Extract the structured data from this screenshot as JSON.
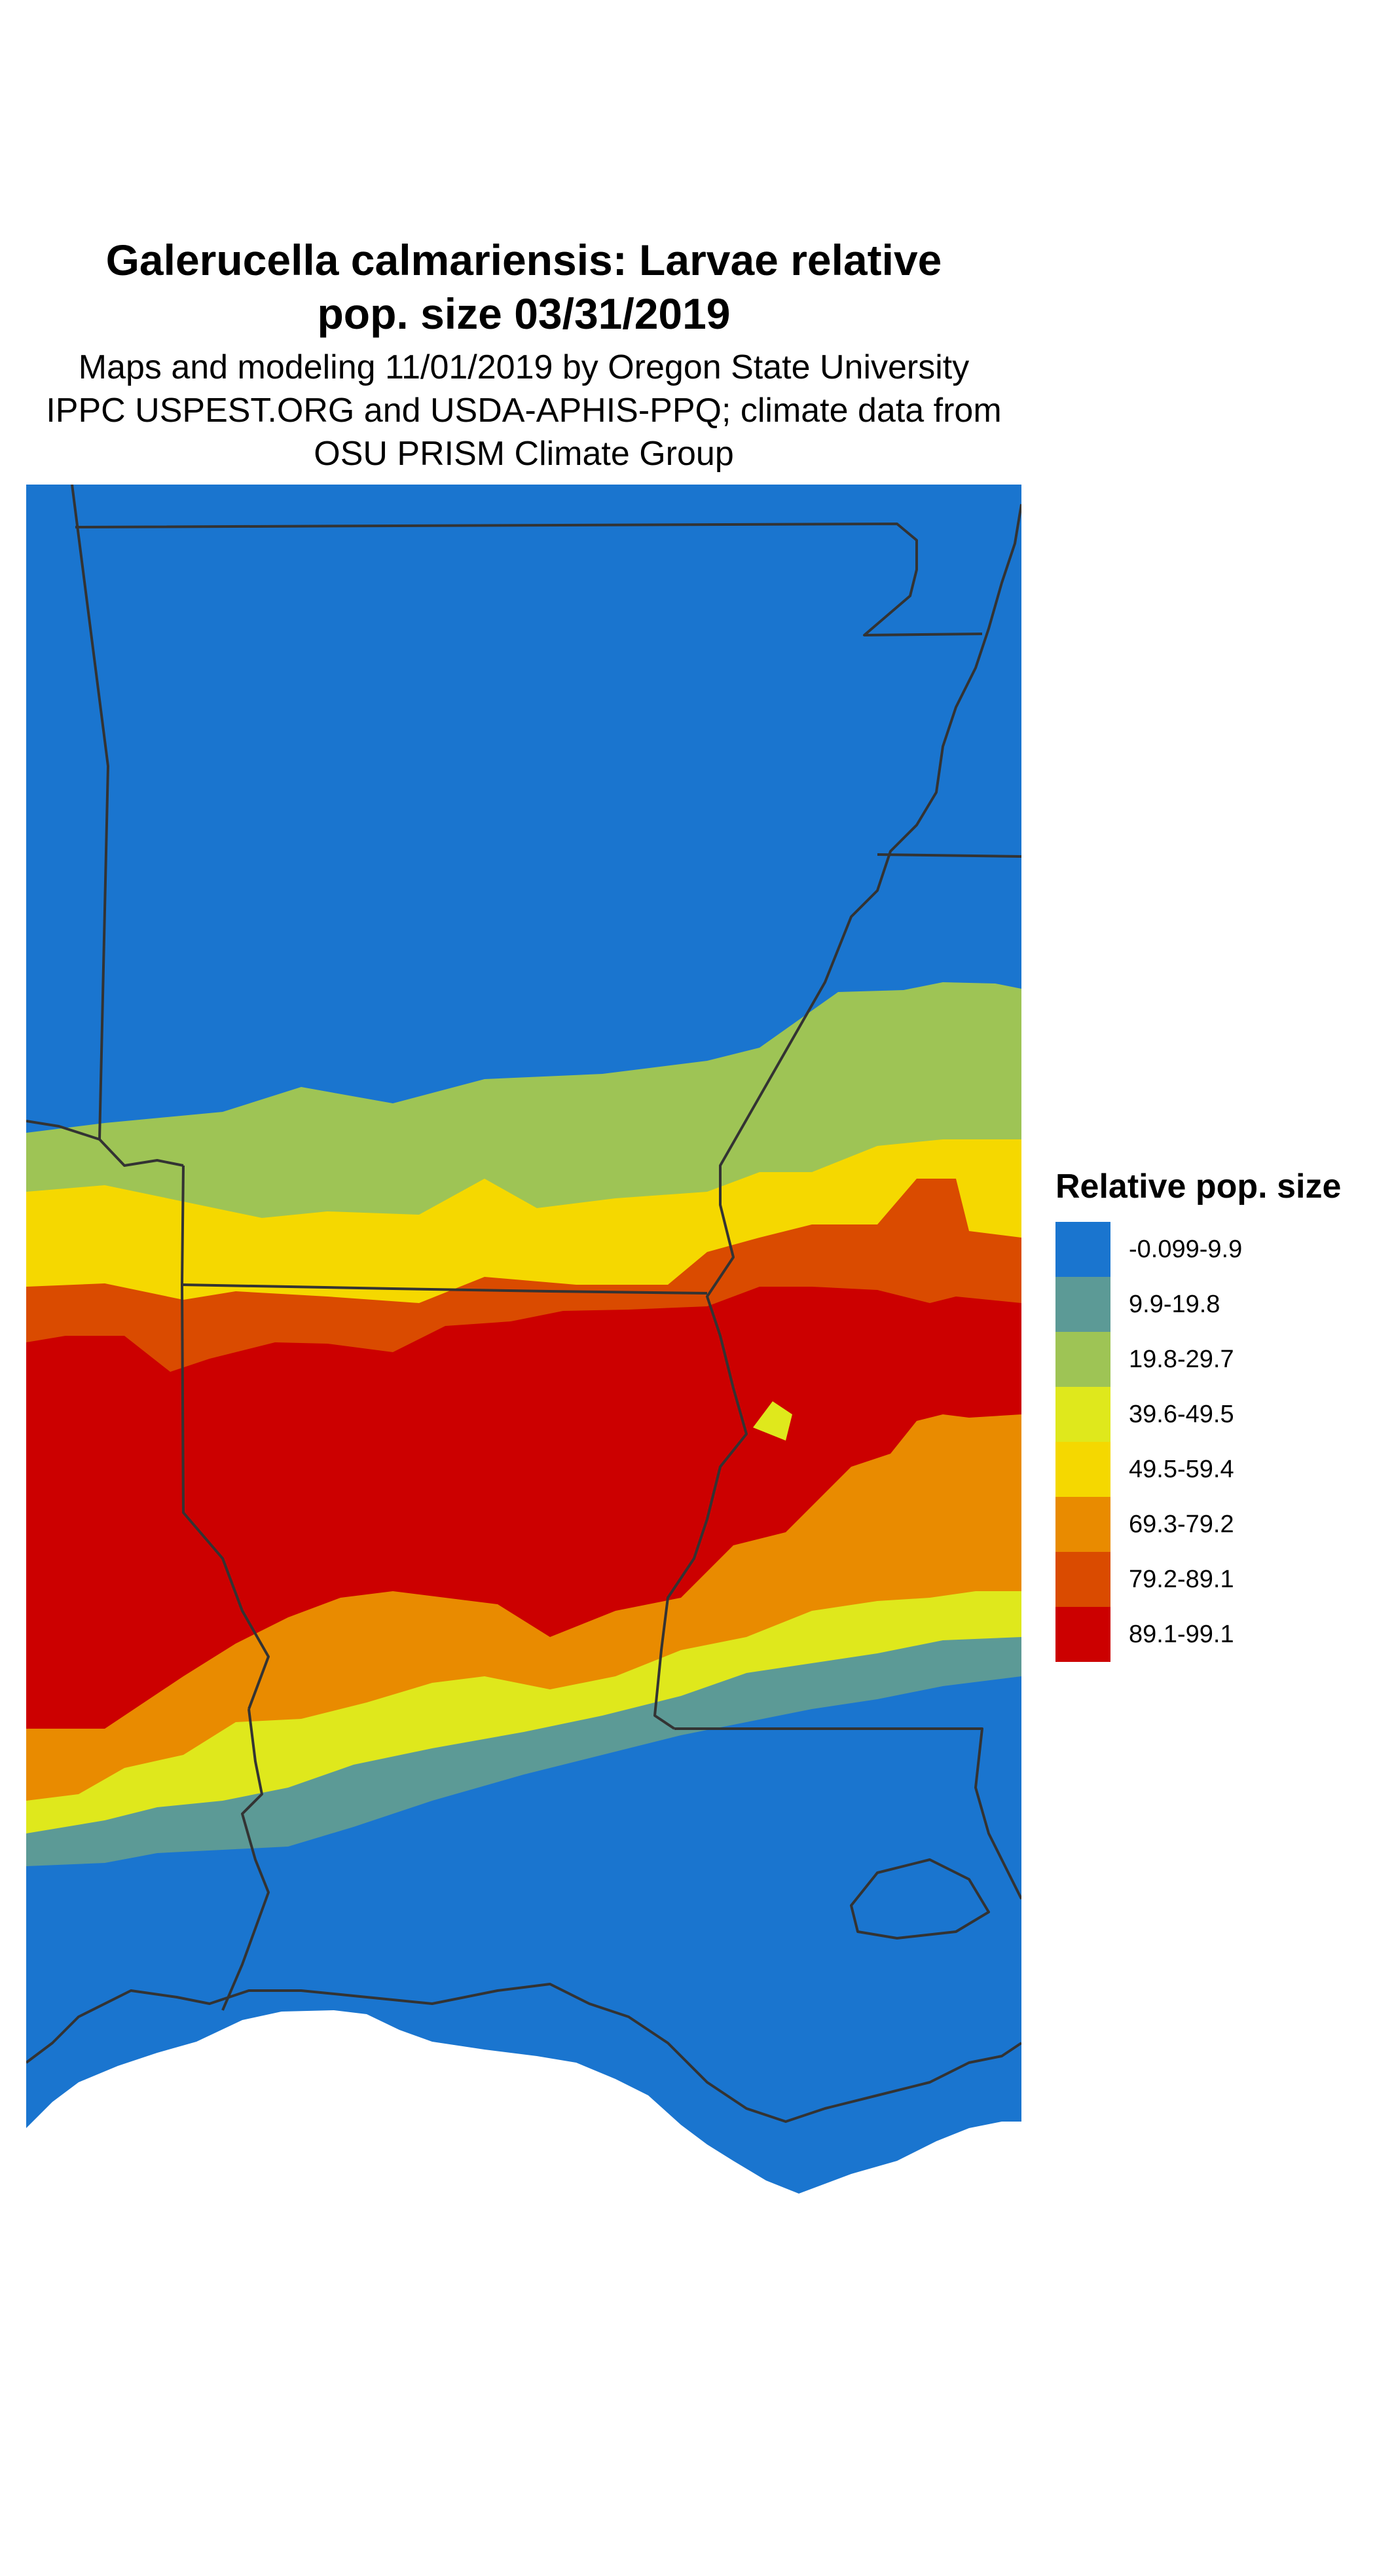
{
  "title": {
    "line1": "Galerucella calmariensis: Larvae relative",
    "line2": "pop. size 03/31/2019"
  },
  "subtitle": {
    "line1": "Maps and modeling 11/01/2019 by Oregon State University",
    "line2": "IPPC USPEST.ORG and USDA-APHIS-PPQ; climate data from",
    "line3": "OSU PRISM Climate Group"
  },
  "legend": {
    "title": "Relative pop. size",
    "items": [
      {
        "label": "-0.099-9.9",
        "color": "#1a75cf"
      },
      {
        "label": "9.9-19.8",
        "color": "#5c9a96"
      },
      {
        "label": "19.8-29.7",
        "color": "#9ec455"
      },
      {
        "label": "39.6-49.5",
        "color": "#dfe81c"
      },
      {
        "label": "49.5-59.4",
        "color": "#f5d800"
      },
      {
        "label": "69.3-79.2",
        "color": "#e98b00"
      },
      {
        "label": "79.2-89.1",
        "color": "#da4b00"
      },
      {
        "label": "89.1-99.1",
        "color": "#cc0000"
      }
    ]
  },
  "map": {
    "boundary_color": "#333333",
    "background_color": "#ffffff"
  }
}
